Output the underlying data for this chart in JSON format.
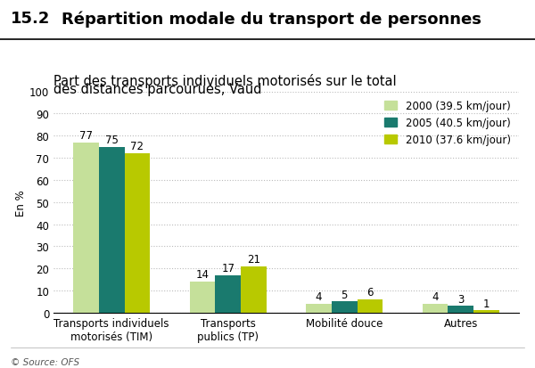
{
  "title_number": "15.2",
  "title_text": "Répartition modale du transport de personnes",
  "subtitle_line1": "Part des transports individuels motorisés sur le total",
  "subtitle_line2": "des distances parcourues, Vaud",
  "ylabel": "En %",
  "ylim": [
    0,
    100
  ],
  "yticks": [
    0,
    10,
    20,
    30,
    40,
    50,
    60,
    70,
    80,
    90,
    100
  ],
  "categories": [
    "Transports individuels\nmotorisés (TIM)",
    "Transports\npublics (TP)",
    "Mobilité douce",
    "Autres"
  ],
  "series": [
    {
      "label": "2000 (39.5 km/jour)",
      "values": [
        77,
        14,
        4,
        4
      ],
      "color": "#c5e09a"
    },
    {
      "label": "2005 (40.5 km/jour)",
      "values": [
        75,
        17,
        5,
        3
      ],
      "color": "#1a7a6e"
    },
    {
      "label": "2010 (37.6 km/jour)",
      "values": [
        72,
        21,
        6,
        1
      ],
      "color": "#b8c900"
    }
  ],
  "bar_width": 0.22,
  "source": "© Source: OFS",
  "background_color": "#ffffff",
  "grid_color": "#bbbbbb",
  "title_fontsize": 13,
  "subtitle_fontsize": 10.5,
  "legend_fontsize": 8.5,
  "axis_fontsize": 8.5,
  "label_fontsize": 8.5,
  "source_fontsize": 7.5
}
